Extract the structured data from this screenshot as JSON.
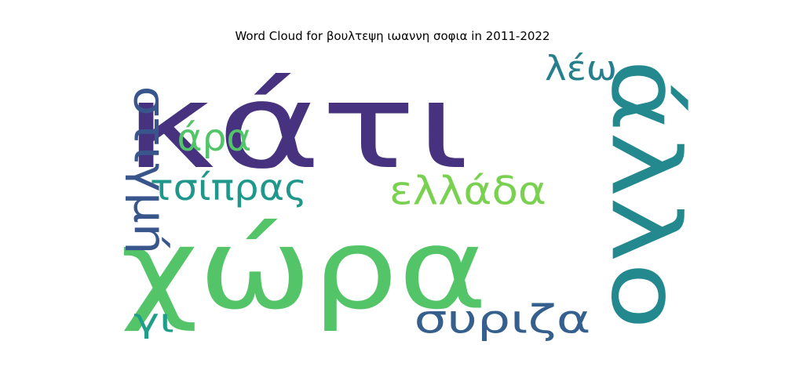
{
  "chart_data": {
    "type": "wordcloud",
    "title": "Word Cloud for βουλτεψη ιωαννη σοφια in 2011-2022",
    "words": [
      {
        "text": "κάτι",
        "color": "#46327e",
        "orientation": "horizontal"
      },
      {
        "text": "χώρα",
        "color": "#53c568",
        "orientation": "horizontal"
      },
      {
        "text": "άλλο",
        "color": "#23898e",
        "orientation": "vertical"
      },
      {
        "text": "στιγμή",
        "color": "#39568c",
        "orientation": "vertical"
      },
      {
        "text": "ελλάδα",
        "color": "#7ad151",
        "orientation": "horizontal"
      },
      {
        "text": "τσίπρας",
        "color": "#1f988b",
        "orientation": "horizontal"
      },
      {
        "text": "άρα",
        "color": "#52c569",
        "orientation": "horizontal"
      },
      {
        "text": "λέω",
        "color": "#277f8e",
        "orientation": "horizontal"
      },
      {
        "text": "συριζα",
        "color": "#355f8d",
        "orientation": "horizontal"
      },
      {
        "text": "γι",
        "color": "#1f9e89",
        "orientation": "horizontal"
      }
    ]
  }
}
